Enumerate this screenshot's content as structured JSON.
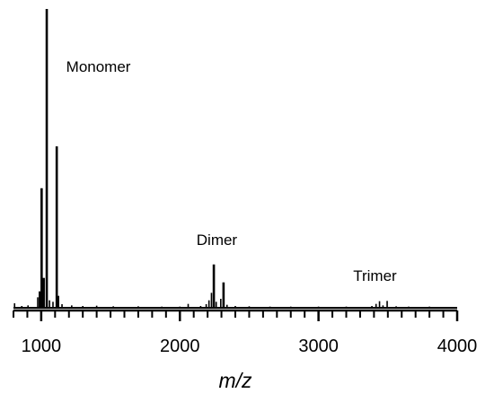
{
  "chart_data": {
    "type": "line",
    "title": "",
    "xlabel": "m/z",
    "ylabel": "",
    "xlim": [
      800,
      4000
    ],
    "ylim": [
      0,
      100
    ],
    "grid": false,
    "x_ticks": [
      1000,
      2000,
      3000,
      4000
    ],
    "x_tick_labels": [
      "1000",
      "2000",
      "3000",
      "4000"
    ],
    "minor_tick_step": 100,
    "annotations": [
      {
        "text": "Monomer",
        "x": 1180,
        "y": 79
      },
      {
        "text": "Dimer",
        "x": 2120,
        "y": 21
      },
      {
        "text": "Trimer",
        "x": 3250,
        "y": 9
      }
    ],
    "series": [
      {
        "peaks": [
          {
            "x": 808,
            "y": 1.5
          },
          {
            "x": 860,
            "y": 0.6
          },
          {
            "x": 905,
            "y": 0.8
          },
          {
            "x": 975,
            "y": 3.5
          },
          {
            "x": 990,
            "y": 5.5
          },
          {
            "x": 1003,
            "y": 40
          },
          {
            "x": 1018,
            "y": 10
          },
          {
            "x": 1040,
            "y": 100
          },
          {
            "x": 1060,
            "y": 2.5
          },
          {
            "x": 1085,
            "y": 2
          },
          {
            "x": 1112,
            "y": 54
          },
          {
            "x": 1125,
            "y": 4
          },
          {
            "x": 1150,
            "y": 1.2
          },
          {
            "x": 1220,
            "y": 0.8
          },
          {
            "x": 1300,
            "y": 0.6
          },
          {
            "x": 1400,
            "y": 0.7
          },
          {
            "x": 1520,
            "y": 0.5
          },
          {
            "x": 1700,
            "y": 0.5
          },
          {
            "x": 1870,
            "y": 0.4
          },
          {
            "x": 2000,
            "y": 0.4
          },
          {
            "x": 2060,
            "y": 1.3
          },
          {
            "x": 2150,
            "y": 0.6
          },
          {
            "x": 2190,
            "y": 1.2
          },
          {
            "x": 2210,
            "y": 2.5
          },
          {
            "x": 2228,
            "y": 5
          },
          {
            "x": 2245,
            "y": 14.5
          },
          {
            "x": 2262,
            "y": 2
          },
          {
            "x": 2295,
            "y": 3
          },
          {
            "x": 2315,
            "y": 8.5
          },
          {
            "x": 2340,
            "y": 1
          },
          {
            "x": 2400,
            "y": 0.6
          },
          {
            "x": 2500,
            "y": 0.5
          },
          {
            "x": 2650,
            "y": 0.4
          },
          {
            "x": 2800,
            "y": 0.4
          },
          {
            "x": 3000,
            "y": 0.4
          },
          {
            "x": 3200,
            "y": 0.4
          },
          {
            "x": 3385,
            "y": 0.6
          },
          {
            "x": 3415,
            "y": 1.3
          },
          {
            "x": 3440,
            "y": 2.2
          },
          {
            "x": 3465,
            "y": 0.8
          },
          {
            "x": 3495,
            "y": 2.3
          },
          {
            "x": 3560,
            "y": 0.5
          },
          {
            "x": 3650,
            "y": 0.4
          },
          {
            "x": 3800,
            "y": 0.4
          },
          {
            "x": 3950,
            "y": 0.3
          }
        ]
      }
    ]
  }
}
